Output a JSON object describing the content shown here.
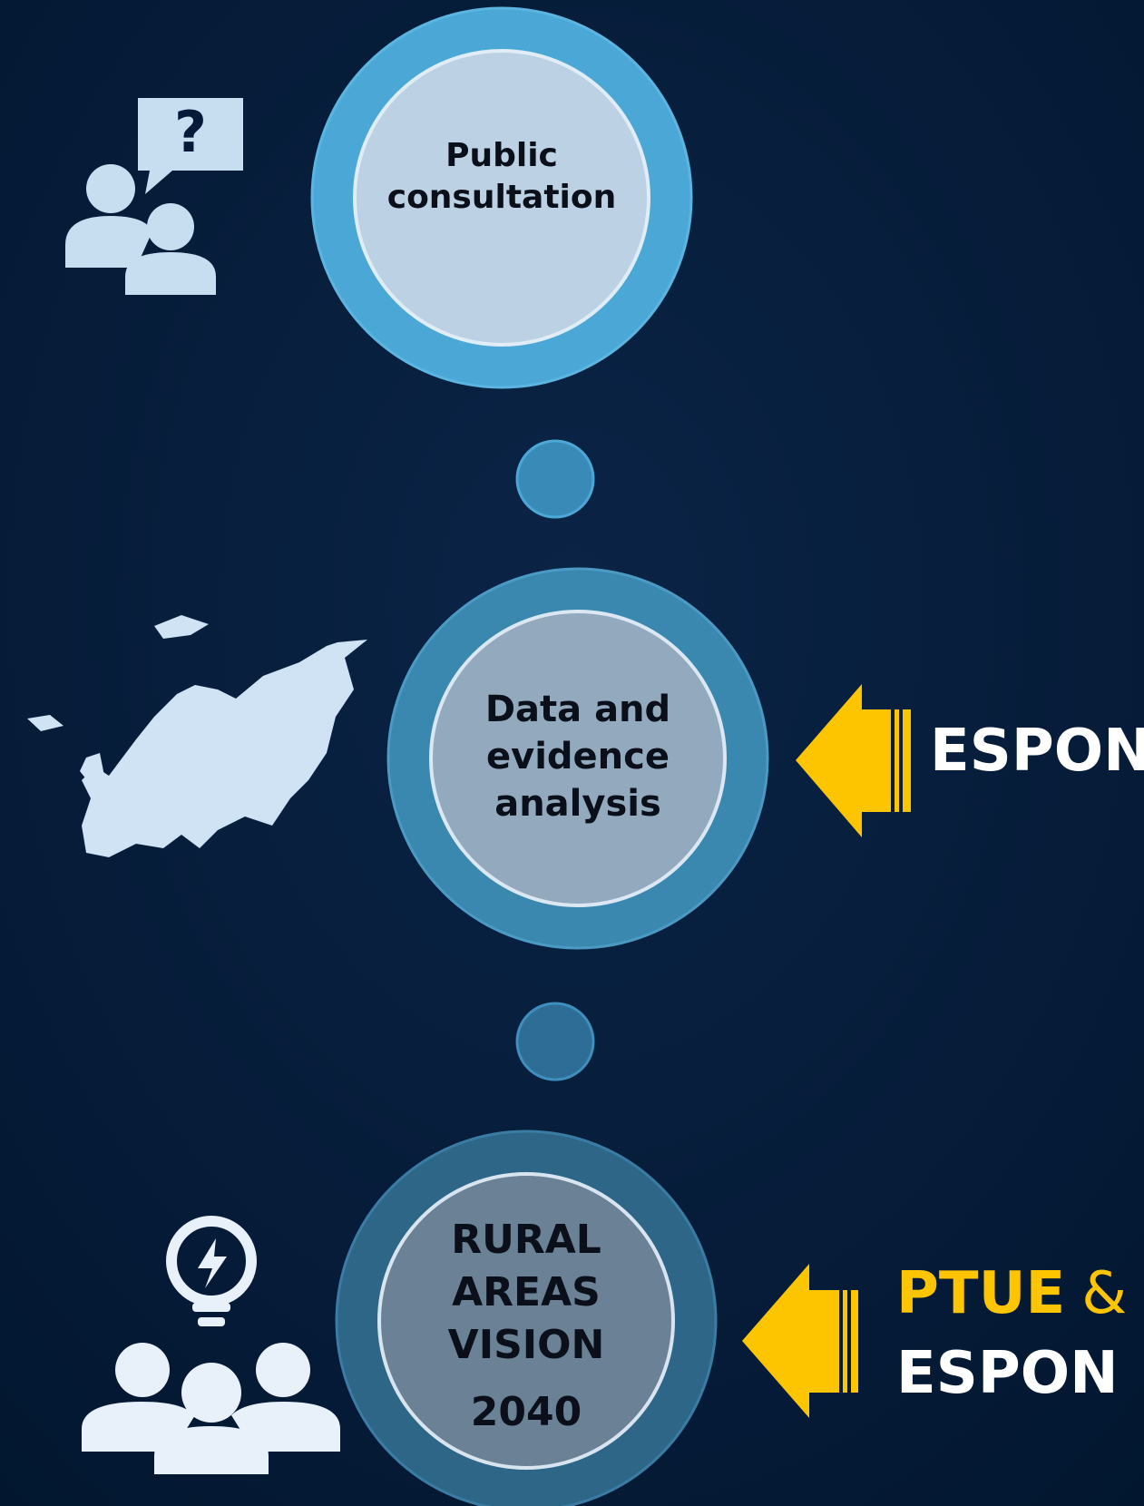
{
  "nodes": [
    {
      "label": [
        "Public",
        "consultation"
      ]
    },
    {
      "label": [
        "Data and",
        "evidence",
        "analysis"
      ]
    },
    {
      "label": [
        "RURAL",
        "AREAS",
        "VISION",
        "2040"
      ]
    }
  ],
  "contributors": [
    {
      "lines": [
        [
          "ESPON"
        ]
      ]
    },
    {
      "lines": [
        [
          "PTUE",
          "&"
        ],
        [
          "ESPON"
        ]
      ]
    }
  ]
}
